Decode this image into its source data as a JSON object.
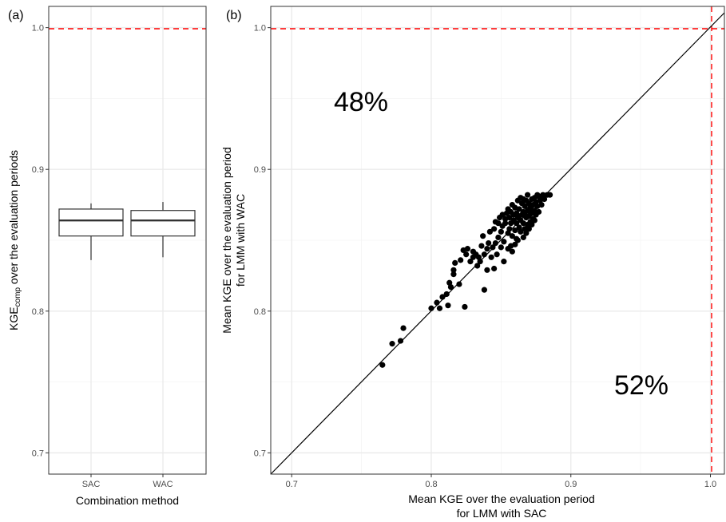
{
  "chart_data": [
    {
      "type": "box",
      "panel_label": "(a)",
      "xlabel": "Combination method",
      "ylabel_main": "KGE",
      "ylabel_sub": "comp",
      "ylabel_rest": " over the evaluation periods",
      "categories": [
        "SAC",
        "WAC"
      ],
      "boxes": [
        {
          "name": "SAC",
          "min": 0.836,
          "q1": 0.853,
          "median": 0.864,
          "q3": 0.872,
          "max": 0.876
        },
        {
          "name": "WAC",
          "min": 0.838,
          "q1": 0.853,
          "median": 0.864,
          "q3": 0.871,
          "max": 0.877
        }
      ],
      "ylim": [
        0.685,
        1.015
      ],
      "yticks": [
        0.7,
        0.8,
        0.9,
        1.0
      ],
      "ytick_labels": [
        "0.7",
        "0.8",
        "0.9",
        "1.0"
      ],
      "reference_line": {
        "y": 1.0,
        "color": "#ff0000",
        "style": "dashed"
      },
      "grid": true
    },
    {
      "type": "scatter",
      "panel_label": "(b)",
      "xlabel_line1": "Mean KGE over the evaluation period",
      "xlabel_line2": "for LMM with SAC",
      "ylabel_line1": "Mean KGE over the evaluation period",
      "ylabel_line2": "for LMM with WAC",
      "xlim": [
        0.685,
        1.01
      ],
      "ylim": [
        0.685,
        1.015
      ],
      "xticks": [
        0.7,
        0.8,
        0.9,
        1.0
      ],
      "xtick_labels": [
        "0.7",
        "0.8",
        "0.9",
        "1.0"
      ],
      "yticks": [
        0.7,
        0.8,
        0.9,
        1.0
      ],
      "ytick_labels": [
        "0.7",
        "0.8",
        "0.9",
        "1.0"
      ],
      "identity_line": true,
      "reference_lines": [
        {
          "x": 1.0,
          "color": "#ff0000",
          "style": "dashed"
        },
        {
          "y": 1.0,
          "color": "#ff0000",
          "style": "dashed"
        }
      ],
      "annotations": [
        {
          "text": "48%",
          "x": 0.75,
          "y": 0.95
        },
        {
          "text": "52%",
          "x": 0.95,
          "y": 0.75
        }
      ],
      "grid": true,
      "points": [
        [
          0.765,
          0.762
        ],
        [
          0.772,
          0.777
        ],
        [
          0.778,
          0.779
        ],
        [
          0.78,
          0.788
        ],
        [
          0.8,
          0.802
        ],
        [
          0.804,
          0.806
        ],
        [
          0.806,
          0.802
        ],
        [
          0.808,
          0.81
        ],
        [
          0.811,
          0.812
        ],
        [
          0.812,
          0.804
        ],
        [
          0.813,
          0.82
        ],
        [
          0.814,
          0.817
        ],
        [
          0.816,
          0.826
        ],
        [
          0.817,
          0.834
        ],
        [
          0.816,
          0.829
        ],
        [
          0.824,
          0.803
        ],
        [
          0.82,
          0.819
        ],
        [
          0.821,
          0.836
        ],
        [
          0.823,
          0.843
        ],
        [
          0.825,
          0.84
        ],
        [
          0.826,
          0.844
        ],
        [
          0.828,
          0.835
        ],
        [
          0.83,
          0.838
        ],
        [
          0.83,
          0.842
        ],
        [
          0.832,
          0.84
        ],
        [
          0.833,
          0.832
        ],
        [
          0.834,
          0.838
        ],
        [
          0.835,
          0.835
        ],
        [
          0.836,
          0.846
        ],
        [
          0.837,
          0.853
        ],
        [
          0.838,
          0.815
        ],
        [
          0.838,
          0.84
        ],
        [
          0.84,
          0.844
        ],
        [
          0.84,
          0.829
        ],
        [
          0.841,
          0.848
        ],
        [
          0.842,
          0.856
        ],
        [
          0.843,
          0.838
        ],
        [
          0.844,
          0.845
        ],
        [
          0.845,
          0.858
        ],
        [
          0.846,
          0.848
        ],
        [
          0.846,
          0.863
        ],
        [
          0.847,
          0.84
        ],
        [
          0.848,
          0.852
        ],
        [
          0.849,
          0.866
        ],
        [
          0.85,
          0.845
        ],
        [
          0.85,
          0.856
        ],
        [
          0.851,
          0.86
        ],
        [
          0.852,
          0.849
        ],
        [
          0.853,
          0.862
        ],
        [
          0.854,
          0.869
        ],
        [
          0.855,
          0.855
        ],
        [
          0.856,
          0.858
        ],
        [
          0.856,
          0.866
        ],
        [
          0.857,
          0.846
        ],
        [
          0.857,
          0.862
        ],
        [
          0.858,
          0.853
        ],
        [
          0.859,
          0.868
        ],
        [
          0.86,
          0.857
        ],
        [
          0.86,
          0.873
        ],
        [
          0.861,
          0.862
        ],
        [
          0.861,
          0.851
        ],
        [
          0.862,
          0.866
        ],
        [
          0.863,
          0.859
        ],
        [
          0.863,
          0.872
        ],
        [
          0.864,
          0.864
        ],
        [
          0.864,
          0.856
        ],
        [
          0.865,
          0.868
        ],
        [
          0.865,
          0.876
        ],
        [
          0.866,
          0.862
        ],
        [
          0.866,
          0.87
        ],
        [
          0.867,
          0.858
        ],
        [
          0.867,
          0.874
        ],
        [
          0.868,
          0.866
        ],
        [
          0.868,
          0.878
        ],
        [
          0.869,
          0.861
        ],
        [
          0.869,
          0.871
        ],
        [
          0.87,
          0.867
        ],
        [
          0.87,
          0.876
        ],
        [
          0.871,
          0.863
        ],
        [
          0.871,
          0.873
        ],
        [
          0.872,
          0.869
        ],
        [
          0.872,
          0.879
        ],
        [
          0.873,
          0.865
        ],
        [
          0.873,
          0.875
        ],
        [
          0.874,
          0.871
        ],
        [
          0.874,
          0.88
        ],
        [
          0.875,
          0.868
        ],
        [
          0.875,
          0.877
        ],
        [
          0.876,
          0.874
        ],
        [
          0.877,
          0.881
        ],
        [
          0.877,
          0.87
        ],
        [
          0.878,
          0.878
        ],
        [
          0.879,
          0.875
        ],
        [
          0.88,
          0.882
        ],
        [
          0.881,
          0.879
        ],
        [
          0.883,
          0.882
        ],
        [
          0.885,
          0.882
        ],
        [
          0.858,
          0.842
        ],
        [
          0.86,
          0.847
        ],
        [
          0.862,
          0.85
        ],
        [
          0.866,
          0.852
        ],
        [
          0.868,
          0.855
        ],
        [
          0.852,
          0.835
        ],
        [
          0.845,
          0.83
        ],
        [
          0.855,
          0.844
        ],
        [
          0.87,
          0.858
        ],
        [
          0.872,
          0.861
        ],
        [
          0.874,
          0.864
        ],
        [
          0.862,
          0.878
        ],
        [
          0.858,
          0.875
        ],
        [
          0.855,
          0.872
        ],
        [
          0.851,
          0.868
        ],
        [
          0.848,
          0.862
        ],
        [
          0.864,
          0.88
        ],
        [
          0.866,
          0.879
        ],
        [
          0.869,
          0.882
        ],
        [
          0.876,
          0.882
        ],
        [
          0.878,
          0.88
        ],
        [
          0.857,
          0.87
        ],
        [
          0.853,
          0.865
        ],
        [
          0.859,
          0.864
        ],
        [
          0.867,
          0.868
        ],
        [
          0.871,
          0.87
        ],
        [
          0.863,
          0.867
        ],
        [
          0.861,
          0.869
        ]
      ]
    }
  ]
}
